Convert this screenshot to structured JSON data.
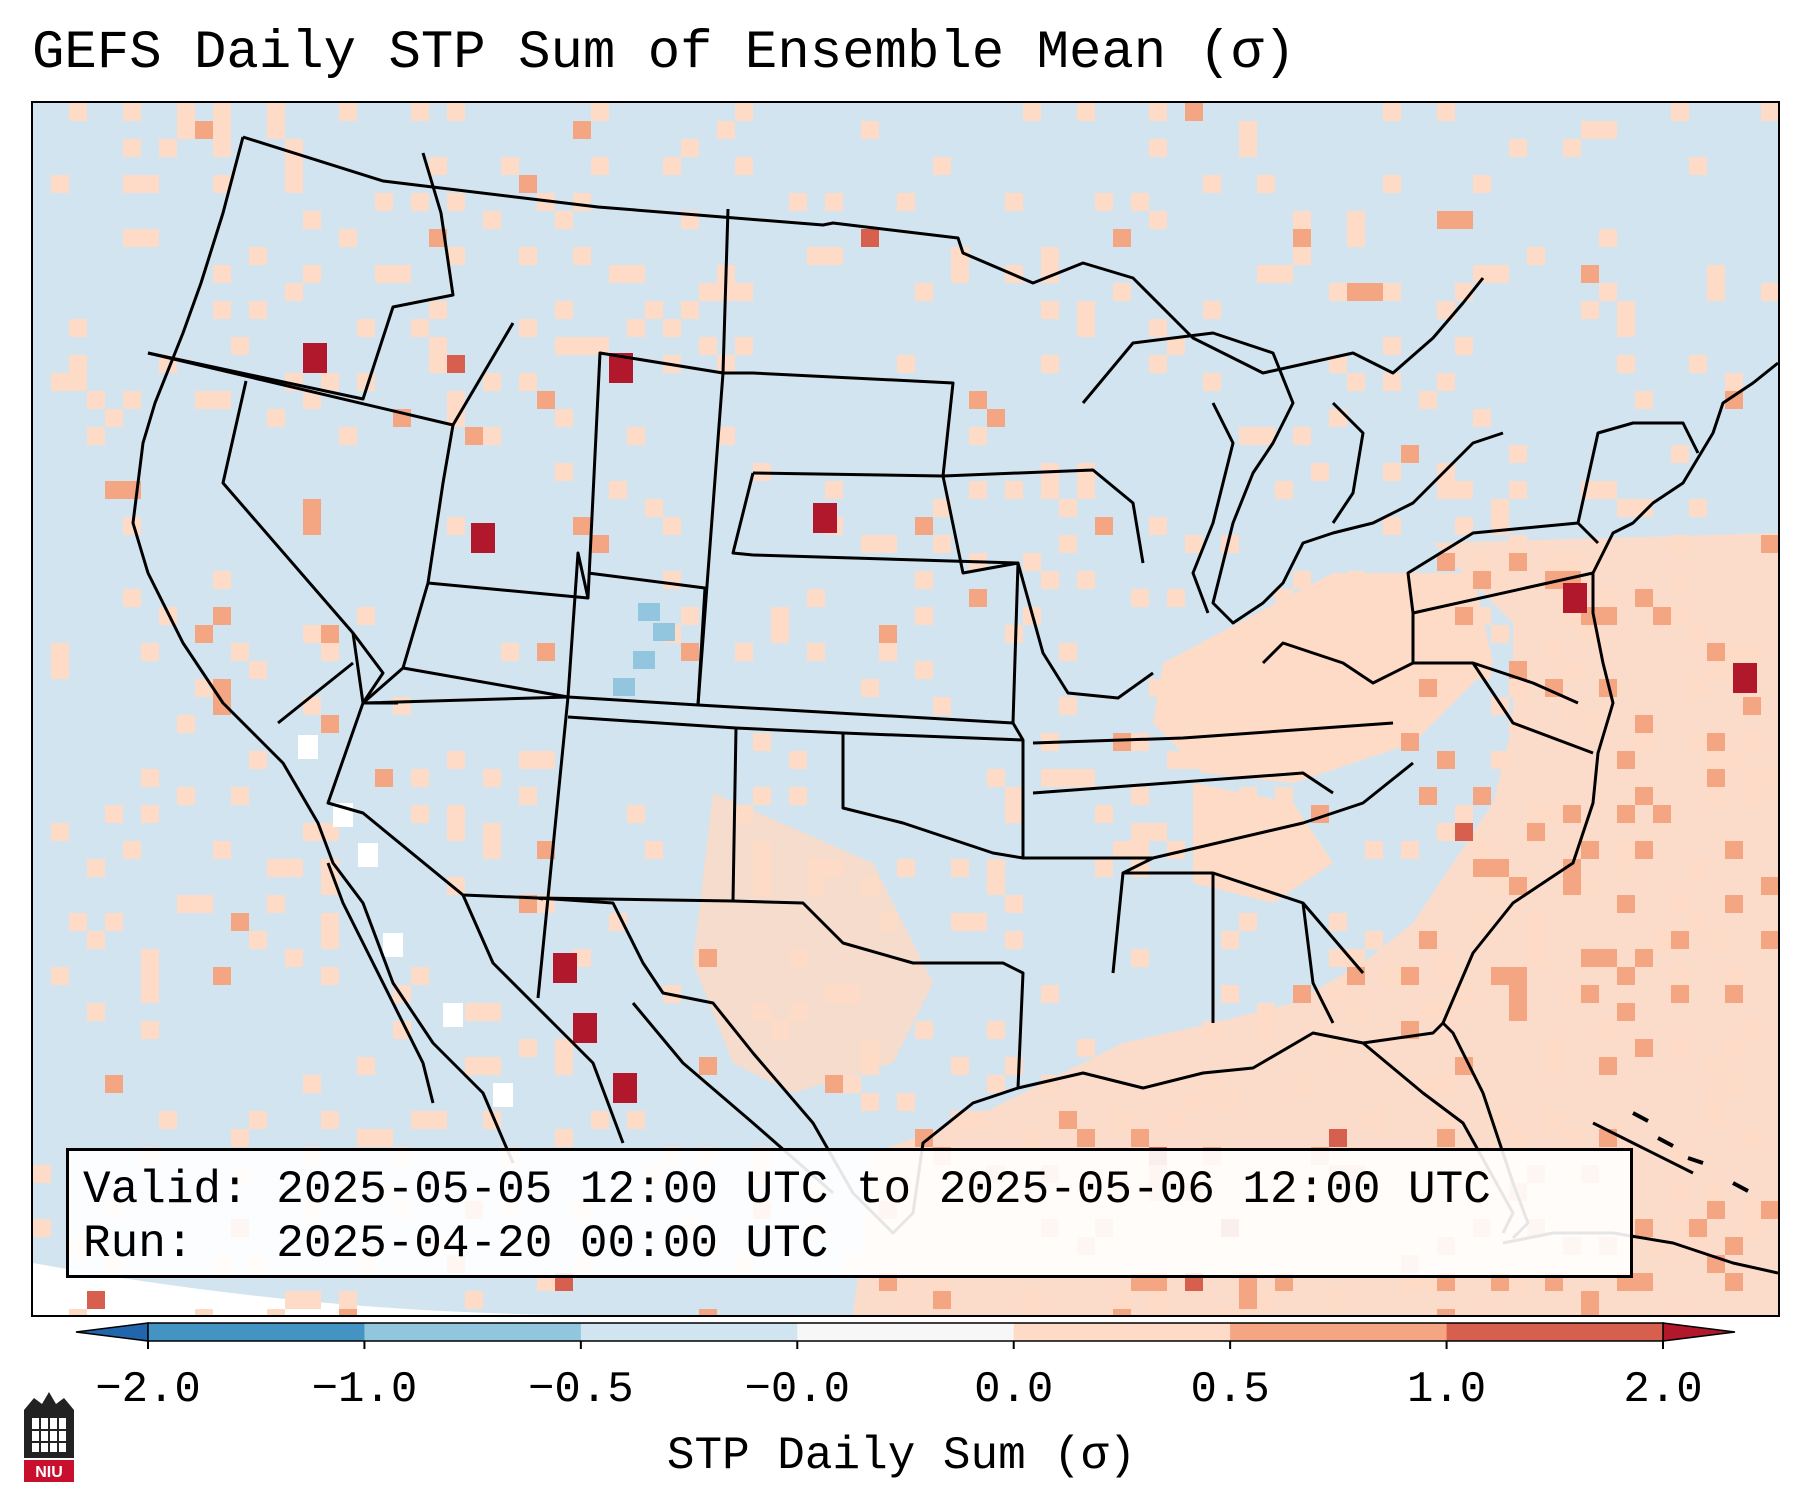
{
  "title": "GEFS Daily STP Sum of Ensemble Mean (σ)",
  "info": {
    "valid_label": "Valid:",
    "valid_value": "2025-05-05 12:00 UTC to 2025-05-06 12:00 UTC",
    "run_label": "Run:",
    "run_value": "2025-04-20 00:00 UTC"
  },
  "colorbar": {
    "label": "STP Daily Sum (σ)",
    "ticks": [
      "−2.0",
      "−1.0",
      "−0.5",
      "−0.0",
      "0.0",
      "0.5",
      "1.0",
      "2.0"
    ],
    "colors": [
      "#4393c3",
      "#92c5de",
      "#d1e5f0",
      "#f7f7f7",
      "#fddbc7",
      "#f4a582",
      "#d6604d"
    ],
    "extend_low_color": "#2166ac",
    "extend_high_color": "#b2182b"
  },
  "logo": {
    "text": "NIU"
  },
  "colors": {
    "ocean": "#d1e4f0",
    "light_positive": "#fddbc7",
    "mid_positive": "#f4a582",
    "high_positive": "#d6604d",
    "extreme_positive": "#b2182b",
    "light_negative": "#92c5de",
    "missing": "#ffffff"
  }
}
